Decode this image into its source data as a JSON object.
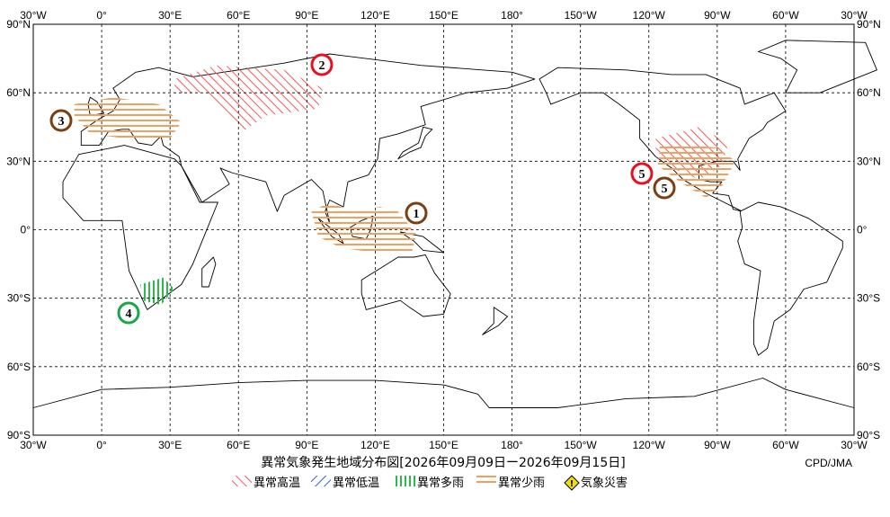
{
  "map": {
    "lon_labels": [
      "30°W",
      "0°",
      "30°E",
      "60°E",
      "90°E",
      "120°E",
      "150°E",
      "180°",
      "150°W",
      "120°W",
      "90°W",
      "60°W",
      "30°W"
    ],
    "lat_labels": [
      "90°N",
      "60°N",
      "30°N",
      "0°",
      "30°S",
      "60°S",
      "90°S"
    ],
    "title": "異常気象発生地域分布図[2026年09月09日ー2026年09月15日]",
    "credit": "CPD/JMA",
    "legend": [
      "異常高温",
      "異常低温",
      "異常多雨",
      "異常少雨",
      "気象災害"
    ],
    "markers": [
      {
        "label": "1",
        "color": "#7b3f12"
      },
      {
        "label": "2",
        "color": "#e8101e"
      },
      {
        "label": "3",
        "color": "#7b3f12"
      },
      {
        "label": "4",
        "color": "#1aa64a"
      },
      {
        "label": "5",
        "color": "#e8101e"
      },
      {
        "label": "5",
        "color": "#7b3f12"
      }
    ]
  }
}
